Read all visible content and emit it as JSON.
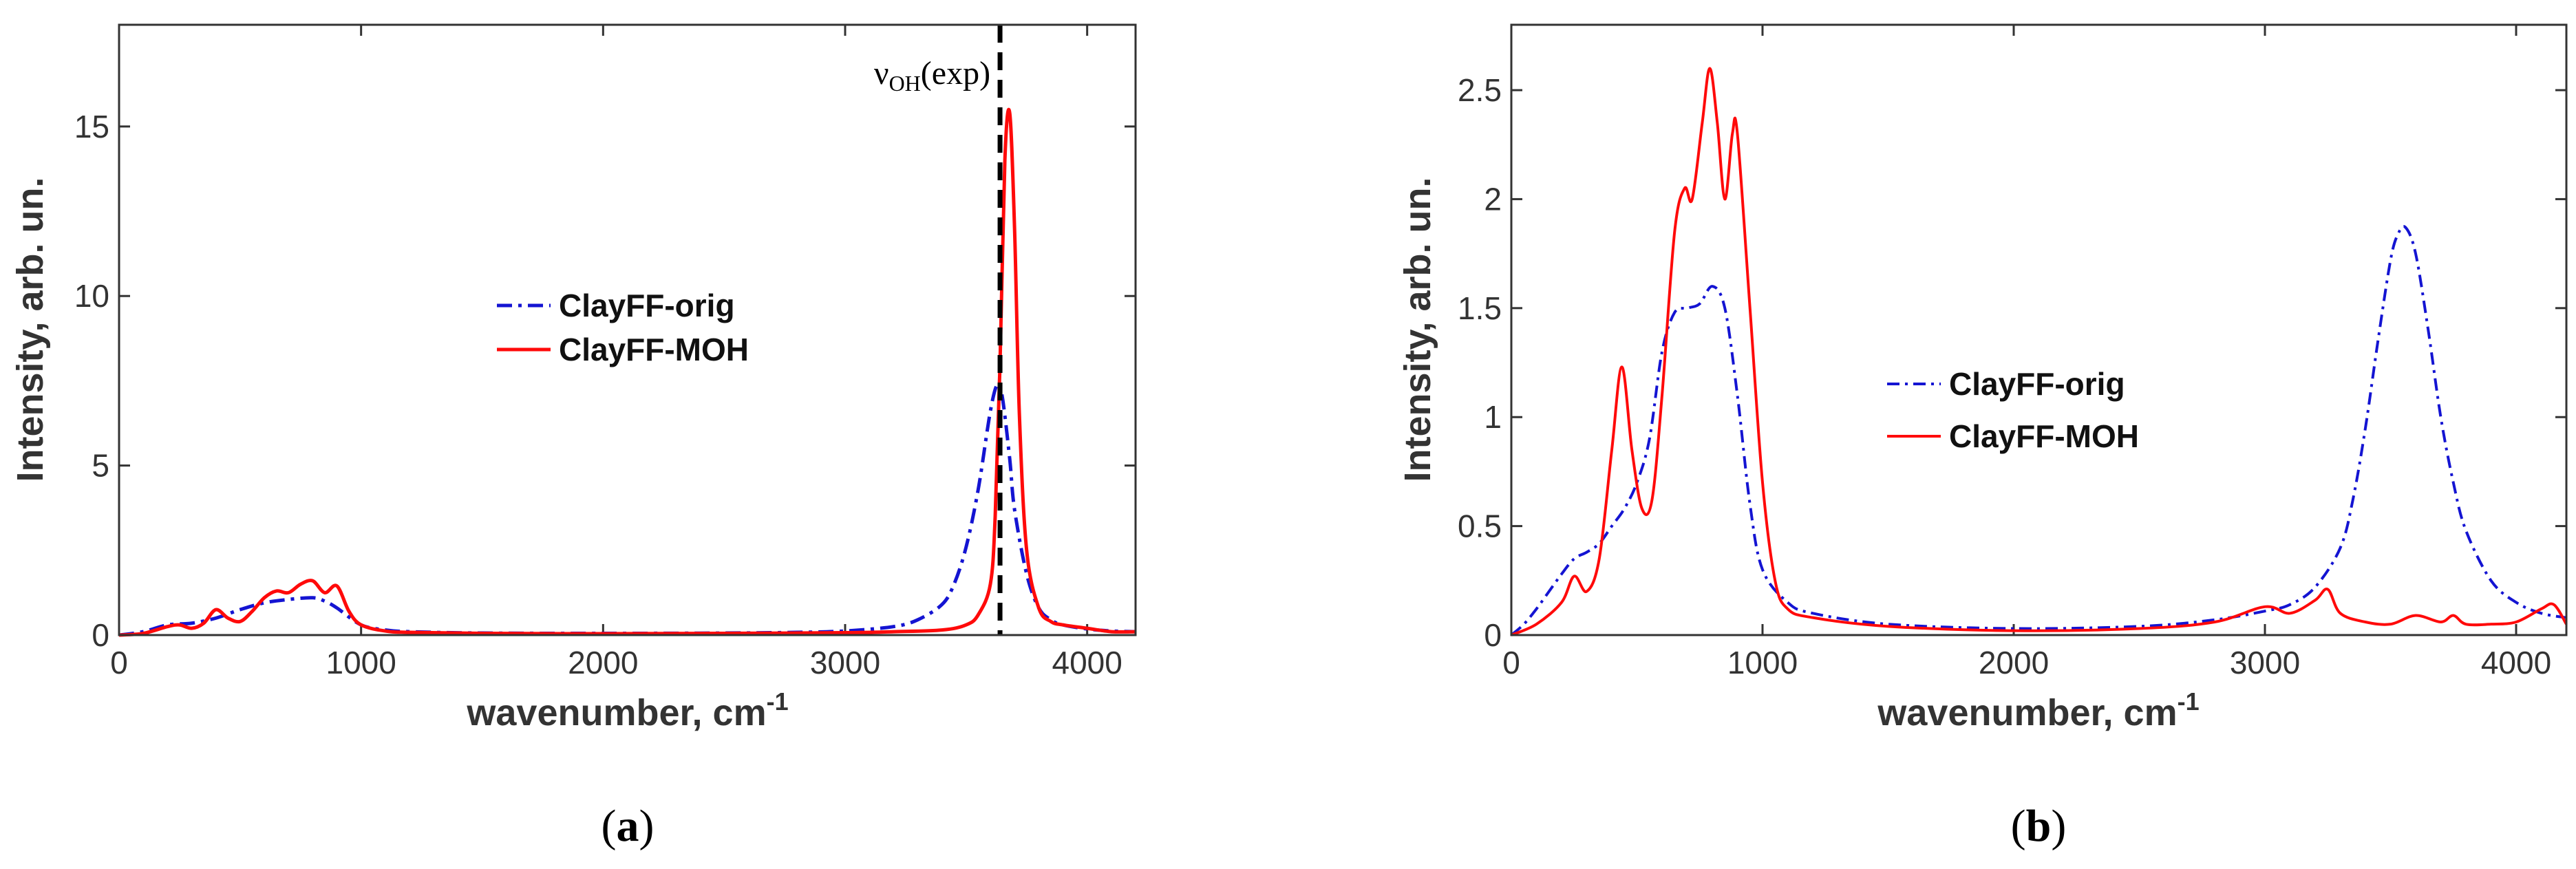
{
  "chart_data": [
    {
      "type": "line",
      "panel": "a",
      "panel_label": "a",
      "xlabel": "wavenumber, cm",
      "xlabel_sup": "-1",
      "ylabel": "Intensity, arb. un.",
      "xlim": [
        0,
        4200
      ],
      "ylim": [
        0,
        18
      ],
      "xticks": [
        0,
        1000,
        2000,
        3000,
        4000
      ],
      "yticks": [
        0,
        5,
        10,
        15
      ],
      "legend_position": "center",
      "annotation": {
        "text_main": "ν",
        "text_sub": "OH",
        "text_tail": "(exp)",
        "x": 3640
      },
      "series": [
        {
          "name": "ClayFF-orig",
          "color": "#1414d2",
          "style": "dash-dot",
          "x": [
            0,
            100,
            200,
            300,
            400,
            500,
            600,
            700,
            800,
            850,
            900,
            1000,
            1100,
            1200,
            1500,
            2000,
            2500,
            2800,
            3000,
            3200,
            3300,
            3400,
            3450,
            3500,
            3550,
            3600,
            3630,
            3650,
            3680,
            3700,
            3750,
            3800,
            3850,
            3900,
            4000,
            4100,
            4200
          ],
          "values": [
            0,
            0.1,
            0.3,
            0.35,
            0.5,
            0.75,
            0.95,
            1.05,
            1.1,
            1.0,
            0.8,
            0.3,
            0.15,
            0.1,
            0.06,
            0.05,
            0.06,
            0.08,
            0.12,
            0.25,
            0.45,
            0.9,
            1.5,
            2.6,
            4.3,
            6.6,
            7.4,
            7.0,
            5.2,
            3.7,
            1.8,
            0.8,
            0.45,
            0.3,
            0.18,
            0.12,
            0.1
          ]
        },
        {
          "name": "ClayFF-MOH",
          "color": "#ff0a0a",
          "style": "solid",
          "x": [
            0,
            100,
            200,
            250,
            300,
            350,
            400,
            450,
            500,
            550,
            600,
            650,
            700,
            750,
            800,
            850,
            900,
            950,
            1000,
            1100,
            1200,
            1500,
            2000,
            2500,
            3000,
            3200,
            3400,
            3500,
            3550,
            3600,
            3620,
            3640,
            3660,
            3680,
            3700,
            3720,
            3750,
            3800,
            3850,
            3900,
            4000,
            4100,
            4200
          ],
          "values": [
            0,
            0.05,
            0.25,
            0.3,
            0.2,
            0.35,
            0.75,
            0.5,
            0.4,
            0.7,
            1.1,
            1.3,
            1.25,
            1.5,
            1.6,
            1.25,
            1.45,
            0.7,
            0.3,
            0.12,
            0.08,
            0.05,
            0.04,
            0.05,
            0.07,
            0.1,
            0.15,
            0.3,
            0.6,
            1.5,
            3.5,
            8.0,
            14.0,
            15.4,
            12.0,
            6.5,
            2.5,
            0.8,
            0.4,
            0.3,
            0.2,
            0.1,
            0.1
          ]
        }
      ]
    },
    {
      "type": "line",
      "panel": "b",
      "panel_label": "b",
      "xlabel": "wavenumber, cm",
      "xlabel_sup": "-1",
      "ylabel": "Intensity, arb. un.",
      "xlim": [
        0,
        4200
      ],
      "ylim": [
        0,
        2.8
      ],
      "xticks": [
        0,
        1000,
        2000,
        3000,
        4000
      ],
      "yticks": [
        0,
        0.5,
        1,
        1.5,
        2,
        2.5
      ],
      "legend_position": "center",
      "series": [
        {
          "name": "ClayFF-orig",
          "color": "#1414d2",
          "style": "dash-dot",
          "x": [
            0,
            50,
            100,
            150,
            200,
            250,
            300,
            350,
            400,
            450,
            500,
            550,
            600,
            650,
            700,
            750,
            800,
            850,
            900,
            950,
            1000,
            1100,
            1200,
            1500,
            2000,
            2500,
            2800,
            3000,
            3100,
            3200,
            3300,
            3350,
            3400,
            3450,
            3500,
            3530,
            3560,
            3600,
            3650,
            3700,
            3750,
            3800,
            3900,
            4000,
            4100,
            4200
          ],
          "values": [
            0.0,
            0.05,
            0.12,
            0.2,
            0.28,
            0.35,
            0.38,
            0.42,
            0.5,
            0.58,
            0.7,
            0.9,
            1.3,
            1.48,
            1.5,
            1.52,
            1.6,
            1.5,
            1.1,
            0.6,
            0.3,
            0.15,
            0.1,
            0.05,
            0.03,
            0.04,
            0.07,
            0.11,
            0.14,
            0.22,
            0.4,
            0.62,
            0.95,
            1.35,
            1.72,
            1.84,
            1.87,
            1.75,
            1.4,
            1.0,
            0.7,
            0.48,
            0.25,
            0.15,
            0.1,
            0.08
          ]
        },
        {
          "name": "ClayFF-MOH",
          "color": "#ff0a0a",
          "style": "solid",
          "x": [
            0,
            100,
            200,
            250,
            300,
            350,
            400,
            440,
            480,
            520,
            560,
            600,
            650,
            690,
            720,
            760,
            790,
            820,
            850,
            880,
            900,
            950,
            1000,
            1050,
            1100,
            1200,
            1500,
            2000,
            2500,
            2800,
            3000,
            3100,
            3200,
            3250,
            3300,
            3400,
            3500,
            3600,
            3700,
            3750,
            3800,
            3900,
            4000,
            4100,
            4150,
            4200
          ],
          "values": [
            0.0,
            0.05,
            0.15,
            0.27,
            0.2,
            0.35,
            0.85,
            1.23,
            0.85,
            0.58,
            0.62,
            1.1,
            1.85,
            2.05,
            2.0,
            2.35,
            2.6,
            2.35,
            2.0,
            2.3,
            2.3,
            1.5,
            0.7,
            0.25,
            0.12,
            0.08,
            0.04,
            0.02,
            0.03,
            0.06,
            0.13,
            0.1,
            0.16,
            0.21,
            0.1,
            0.06,
            0.05,
            0.09,
            0.06,
            0.09,
            0.05,
            0.05,
            0.06,
            0.12,
            0.14,
            0.05
          ]
        }
      ]
    }
  ]
}
